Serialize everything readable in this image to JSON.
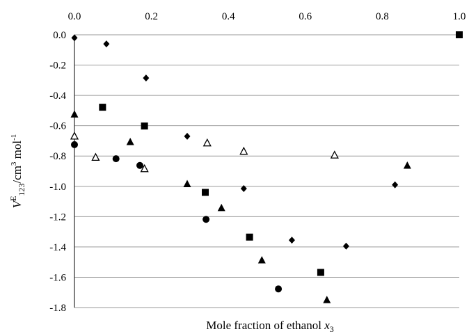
{
  "chart_data": {
    "type": "scatter",
    "title": "",
    "xlabel": "Mole fraction of ethanol x3",
    "xlabel_parts": {
      "text": "Mole fraction of ethanol ",
      "var": "x",
      "sub": "3"
    },
    "ylabel": "VE123/cm3 mol-1",
    "ylabel_parts": {
      "v": "V",
      "sup_e": "E",
      "sub": "123",
      "unit": "/cm",
      "unit_sup": "3",
      "mol": " mol",
      "mol_sup": "-1"
    },
    "xlim": [
      0.0,
      1.0
    ],
    "ylim": [
      -1.8,
      0.0
    ],
    "x_ticks": [
      "0.0",
      "0.2",
      "0.4",
      "0.6",
      "0.8",
      "1.0"
    ],
    "y_ticks": [
      "0.0",
      "-0.2",
      "-0.4",
      "-0.6",
      "-0.8",
      "-1.0",
      "-1.2",
      "-1.4",
      "-1.6",
      "-1.8"
    ],
    "x_axis_position": "top",
    "grid": "horizontal",
    "legend": "none",
    "series": [
      {
        "marker": "diamond",
        "points": [
          [
            0.0,
            -0.02
          ],
          [
            0.083,
            -0.06
          ],
          [
            0.186,
            -0.285
          ],
          [
            0.293,
            -0.67
          ],
          [
            0.44,
            -1.015
          ],
          [
            0.565,
            -1.355
          ],
          [
            0.706,
            -1.395
          ],
          [
            0.833,
            -0.99
          ]
        ]
      },
      {
        "marker": "square",
        "points": [
          [
            0.073,
            -0.478
          ],
          [
            0.182,
            -0.602
          ],
          [
            0.34,
            -1.04
          ],
          [
            0.455,
            -1.335
          ],
          [
            0.64,
            -1.568
          ],
          [
            1.0,
            0.0
          ]
        ]
      },
      {
        "marker": "triangle",
        "points": [
          [
            0.0,
            -0.525
          ],
          [
            0.145,
            -0.707
          ],
          [
            0.293,
            -0.985
          ],
          [
            0.382,
            -1.143
          ],
          [
            0.487,
            -1.488
          ],
          [
            0.656,
            -1.75
          ],
          [
            0.865,
            -0.863
          ]
        ]
      },
      {
        "marker": "triangle-open",
        "points": [
          [
            0.0,
            -0.67
          ],
          [
            0.055,
            -0.81
          ],
          [
            0.182,
            -0.885
          ],
          [
            0.345,
            -0.715
          ],
          [
            0.44,
            -0.77
          ],
          [
            0.676,
            -0.795
          ]
        ]
      },
      {
        "marker": "circle",
        "points": [
          [
            0.0,
            -0.725
          ],
          [
            0.108,
            -0.818
          ],
          [
            0.17,
            -0.862
          ],
          [
            0.342,
            -1.218
          ],
          [
            0.53,
            -1.677
          ]
        ]
      }
    ]
  }
}
